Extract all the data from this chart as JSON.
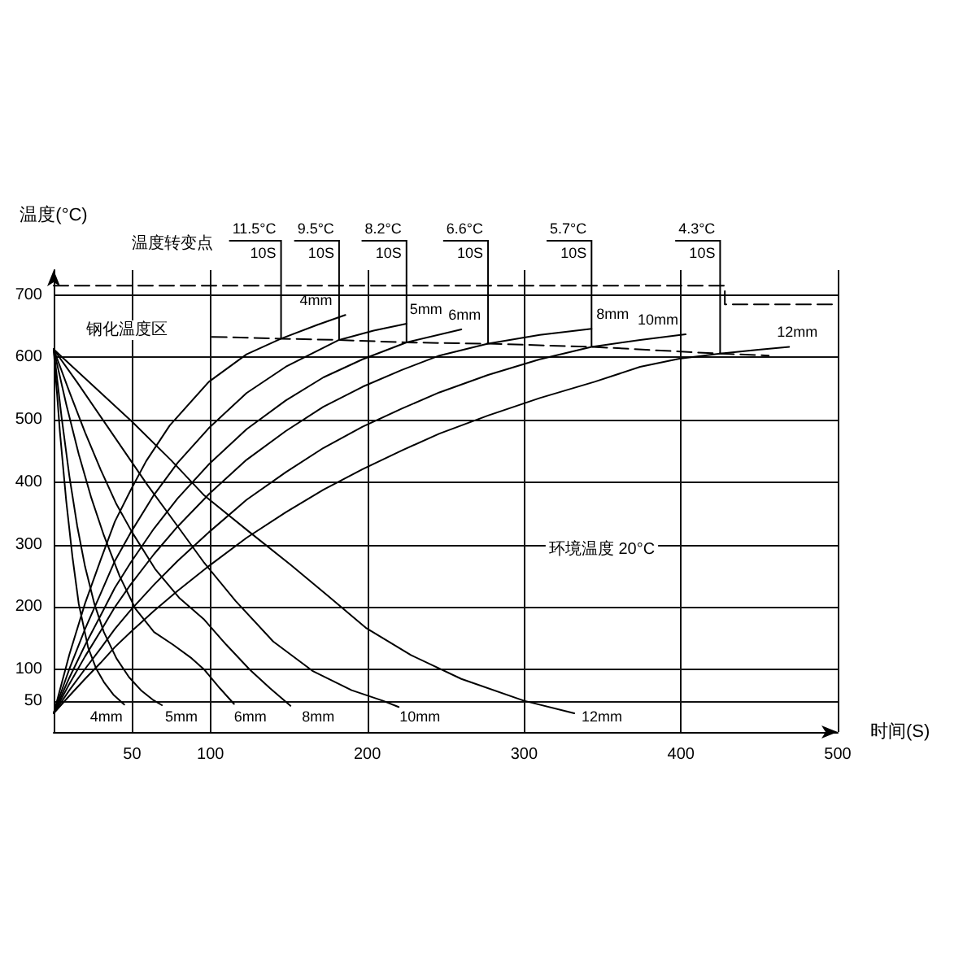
{
  "chart_data": {
    "type": "line",
    "xlabel": "时间(S)",
    "ylabel": "温度(°C)",
    "xlim": [
      0,
      500
    ],
    "xticks": [
      50,
      100,
      200,
      300,
      400,
      500
    ],
    "ylim": [
      0,
      740
    ],
    "yticks": [
      50,
      100,
      200,
      300,
      400,
      500,
      600,
      700
    ],
    "grid": true,
    "marker": "none",
    "series": [
      {
        "name": "4mm",
        "color": "#000000",
        "x": [
          0,
          10,
          20,
          30,
          39,
          49,
          59,
          74,
          99,
          123,
          145,
          168,
          186
        ],
        "values": [
          30,
          124,
          206,
          276,
          337,
          387,
          434,
          491,
          561,
          605,
          630,
          652,
          668
        ]
      },
      {
        "name": "5mm",
        "color": "#000000",
        "x": [
          0,
          10,
          20,
          30,
          39,
          49,
          64,
          79,
          99,
          123,
          148,
          182,
          204,
          225
        ],
        "values": [
          30,
          101,
          165,
          222,
          274,
          319,
          380,
          431,
          487,
          543,
          585,
          628,
          643,
          654
        ]
      },
      {
        "name": "6mm",
        "color": "#000000",
        "x": [
          0,
          10,
          20,
          30,
          39,
          49,
          64,
          79,
          99,
          123,
          148,
          172,
          197,
          225,
          260
        ],
        "values": [
          30,
          87,
          139,
          187,
          231,
          271,
          326,
          374,
          429,
          485,
          531,
          568,
          597,
          624,
          645
        ]
      },
      {
        "name": "8mm",
        "color": "#000000",
        "x": [
          0,
          10,
          20,
          30,
          39,
          49,
          64,
          79,
          99,
          123,
          148,
          172,
          197,
          222,
          246,
          277,
          310,
          343
        ],
        "values": [
          30,
          77,
          121,
          162,
          200,
          236,
          285,
          329,
          381,
          436,
          482,
          521,
          553,
          580,
          603,
          622,
          636,
          646
        ]
      },
      {
        "name": "10mm",
        "color": "#000000",
        "x": [
          0,
          10,
          20,
          30,
          39,
          49,
          64,
          79,
          99,
          123,
          148,
          172,
          197,
          222,
          246,
          277,
          310,
          343,
          374,
          403
        ],
        "values": [
          30,
          67,
          101,
          134,
          165,
          195,
          236,
          274,
          320,
          372,
          416,
          455,
          489,
          518,
          544,
          572,
          597,
          617,
          628,
          637
        ]
      },
      {
        "name": "12mm",
        "color": "#000000",
        "x": [
          0,
          10,
          20,
          30,
          39,
          49,
          64,
          79,
          99,
          123,
          148,
          172,
          197,
          222,
          246,
          277,
          310,
          345,
          374,
          399,
          425,
          448,
          469
        ],
        "values": [
          30,
          58,
          85,
          111,
          136,
          160,
          194,
          226,
          266,
          311,
          352,
          388,
          421,
          451,
          478,
          507,
          535,
          561,
          585,
          598,
          606,
          612,
          617
        ]
      },
      {
        "name": "4mm",
        "color": "#000000",
        "x": [
          0,
          4,
          8,
          12,
          16,
          22,
          27,
          32,
          38,
          45
        ],
        "values": [
          613,
          480,
          370,
          280,
          205,
          135,
          102,
          80,
          60,
          44
        ]
      },
      {
        "name": "5mm",
        "color": "#000000",
        "x": [
          0,
          5,
          10,
          15,
          20,
          26,
          32,
          40,
          48,
          56,
          63,
          69
        ],
        "values": [
          613,
          505,
          410,
          330,
          265,
          205,
          160,
          118,
          88,
          66,
          52,
          43
        ]
      },
      {
        "name": "6mm",
        "color": "#000000",
        "x": [
          0,
          8,
          16,
          24,
          32,
          42,
          52,
          64,
          76,
          88,
          96,
          106,
          115
        ],
        "values": [
          613,
          525,
          445,
          375,
          315,
          250,
          198,
          160,
          140,
          118,
          100,
          70,
          45
        ]
      },
      {
        "name": "8mm",
        "color": "#000000",
        "x": [
          0,
          10,
          20,
          30,
          40,
          50,
          65,
          80,
          96,
          110,
          125,
          138,
          151
        ],
        "values": [
          613,
          545,
          480,
          420,
          365,
          320,
          260,
          215,
          180,
          140,
          100,
          70,
          42
        ]
      },
      {
        "name": "10mm",
        "color": "#000000",
        "x": [
          0,
          15,
          30,
          45,
          60,
          76,
          96,
          116,
          140,
          165,
          190,
          210,
          220
        ],
        "values": [
          613,
          560,
          505,
          450,
          395,
          340,
          271,
          210,
          145,
          98,
          67,
          50,
          40
        ]
      },
      {
        "name": "12mm",
        "color": "#000000",
        "x": [
          0,
          25,
          50,
          75,
          96,
          125,
          151,
          175,
          199,
          228,
          260,
          300,
          332
        ],
        "values": [
          613,
          555,
          497,
          435,
          379,
          320,
          268,
          218,
          167,
          123,
          85,
          50,
          30
        ]
      },
      {
        "color": "#000000",
        "line_style": "dashed",
        "x": [
          101,
          145,
          182,
          225,
          277,
          343,
          425,
          456
        ],
        "values": [
          633,
          630,
          628,
          624,
          622,
          617,
          606,
          603
        ]
      },
      {
        "color": "#000000",
        "line_style": "dashed",
        "x": [
          0,
          428,
          428,
          500
        ],
        "values": [
          715,
          715,
          685,
          685
        ]
      }
    ],
    "annotations": [
      "温度转变点",
      "钢化温度区",
      "环境温度 20°C",
      {
        "text": "11.5°C\n10S",
        "x": 145,
        "y": 630
      },
      {
        "text": "9.5°C\n10S",
        "x": 182,
        "y": 628
      },
      {
        "text": "8.2°C\n10S",
        "x": 225,
        "y": 624
      },
      {
        "text": "6.6°C\n10S",
        "x": 277,
        "y": 622
      },
      {
        "text": "5.7°C\n10S",
        "x": 343,
        "y": 617
      },
      {
        "text": "4.3°C\n10S",
        "x": 425,
        "y": 606
      }
    ]
  }
}
